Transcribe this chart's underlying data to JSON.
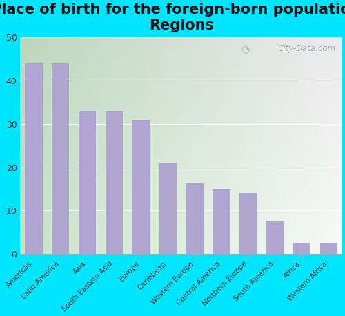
{
  "title": "Place of birth for the foreign-born population -\nRegions",
  "categories": [
    "Americas",
    "Latin America",
    "Asia",
    "South Eastern Asia",
    "Europe",
    "Caribbean",
    "Western Europe",
    "Central America",
    "Northern Europe",
    "South America",
    "Africa",
    "Western Africa"
  ],
  "values": [
    44,
    44,
    33,
    33,
    31,
    21,
    16.5,
    15,
    14,
    7.5,
    2.5,
    2.5
  ],
  "bar_color": "#b0a4d0",
  "background_color": "#00e5ff",
  "ylim": [
    0,
    50
  ],
  "yticks": [
    0,
    10,
    20,
    30,
    40,
    50
  ],
  "title_fontsize": 15,
  "watermark_text": "City-Data.com",
  "grad_top_left": "#c8e6c9",
  "grad_bottom_right": "#f0fff0"
}
